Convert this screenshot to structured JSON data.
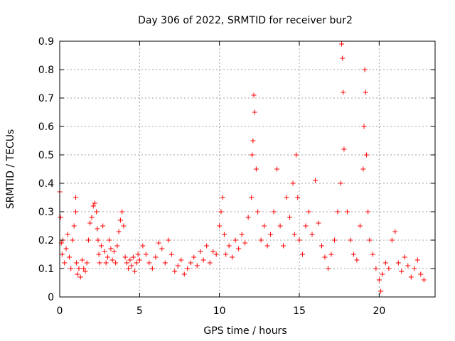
{
  "chart_data": {
    "type": "scatter",
    "title": "Day 306 of 2022, SRMTID for receiver bur2",
    "xlabel": "GPS time / hours",
    "ylabel": "SRMTID / TECUs",
    "xlim": [
      0,
      23.5
    ],
    "ylim": [
      0,
      0.9
    ],
    "x_ticks": [
      0,
      5,
      10,
      15,
      20
    ],
    "x_tick_labels": [
      "0",
      "5",
      "10",
      "15",
      "20"
    ],
    "y_ticks": [
      0,
      0.1,
      0.2,
      0.3,
      0.4,
      0.5,
      0.6,
      0.7,
      0.8,
      0.9
    ],
    "y_tick_labels": [
      "0",
      "0.1",
      "0.2",
      "0.3",
      "0.4",
      "0.5",
      "0.6",
      "0.7",
      "0.8",
      "0.9"
    ],
    "grid": true,
    "legend": "none",
    "marker": "plus",
    "series_color": "#ff0000",
    "series": [
      {
        "name": "SRMTID",
        "x": [
          0.0,
          0.05,
          0.1,
          0.15,
          0.2,
          0.3,
          0.4,
          0.5,
          0.6,
          0.7,
          0.8,
          0.9,
          1.0,
          1.0,
          1.05,
          1.1,
          1.2,
          1.3,
          1.4,
          1.5,
          1.6,
          1.7,
          1.8,
          1.9,
          2.0,
          2.1,
          2.2,
          2.3,
          2.35,
          2.4,
          2.45,
          2.5,
          2.6,
          2.7,
          2.8,
          2.9,
          3.0,
          3.1,
          3.2,
          3.3,
          3.4,
          3.5,
          3.6,
          3.7,
          3.8,
          3.9,
          4.0,
          4.1,
          4.2,
          4.3,
          4.4,
          4.5,
          4.6,
          4.7,
          4.8,
          4.9,
          5.0,
          5.2,
          5.4,
          5.6,
          5.8,
          6.0,
          6.2,
          6.4,
          6.6,
          6.8,
          7.0,
          7.2,
          7.4,
          7.6,
          7.8,
          8.0,
          8.2,
          8.4,
          8.6,
          8.8,
          9.0,
          9.2,
          9.4,
          9.6,
          9.8,
          10.0,
          10.1,
          10.2,
          10.3,
          10.4,
          10.6,
          10.8,
          11.0,
          11.2,
          11.4,
          11.6,
          11.8,
          12.0,
          12.05,
          12.1,
          12.15,
          12.2,
          12.3,
          12.4,
          12.6,
          12.8,
          13.0,
          13.2,
          13.4,
          13.6,
          13.8,
          14.0,
          14.2,
          14.4,
          14.6,
          14.7,
          14.8,
          14.9,
          15.0,
          15.2,
          15.4,
          15.6,
          15.8,
          16.0,
          16.2,
          16.4,
          16.6,
          16.8,
          17.0,
          17.2,
          17.4,
          17.6,
          17.65,
          17.7,
          17.75,
          17.8,
          18.0,
          18.2,
          18.4,
          18.6,
          18.8,
          19.0,
          19.05,
          19.1,
          19.15,
          19.2,
          19.3,
          19.4,
          19.6,
          19.8,
          20.0,
          20.1,
          20.2,
          20.4,
          20.6,
          20.8,
          21.0,
          21.2,
          21.4,
          21.6,
          21.8,
          22.0,
          22.2,
          22.4,
          22.6,
          22.8
        ],
        "y": [
          0.37,
          0.28,
          0.19,
          0.15,
          0.2,
          0.12,
          0.17,
          0.22,
          0.14,
          0.1,
          0.2,
          0.25,
          0.35,
          0.3,
          0.12,
          0.08,
          0.1,
          0.07,
          0.13,
          0.1,
          0.09,
          0.12,
          0.2,
          0.26,
          0.28,
          0.32,
          0.33,
          0.3,
          0.24,
          0.2,
          0.15,
          0.12,
          0.18,
          0.25,
          0.16,
          0.12,
          0.14,
          0.2,
          0.17,
          0.13,
          0.16,
          0.12,
          0.18,
          0.23,
          0.27,
          0.3,
          0.25,
          0.14,
          0.12,
          0.1,
          0.13,
          0.11,
          0.14,
          0.09,
          0.12,
          0.15,
          0.13,
          0.18,
          0.15,
          0.12,
          0.1,
          0.14,
          0.19,
          0.17,
          0.12,
          0.2,
          0.15,
          0.09,
          0.11,
          0.13,
          0.08,
          0.1,
          0.12,
          0.14,
          0.11,
          0.16,
          0.13,
          0.18,
          0.12,
          0.16,
          0.15,
          0.25,
          0.3,
          0.35,
          0.22,
          0.15,
          0.18,
          0.14,
          0.2,
          0.17,
          0.22,
          0.19,
          0.28,
          0.35,
          0.5,
          0.55,
          0.71,
          0.65,
          0.45,
          0.3,
          0.2,
          0.25,
          0.18,
          0.22,
          0.3,
          0.45,
          0.25,
          0.18,
          0.35,
          0.28,
          0.4,
          0.22,
          0.5,
          0.35,
          0.2,
          0.15,
          0.25,
          0.3,
          0.22,
          0.41,
          0.26,
          0.18,
          0.14,
          0.1,
          0.15,
          0.2,
          0.3,
          0.4,
          0.89,
          0.84,
          0.72,
          0.52,
          0.3,
          0.2,
          0.15,
          0.13,
          0.25,
          0.45,
          0.6,
          0.8,
          0.72,
          0.5,
          0.3,
          0.2,
          0.15,
          0.1,
          0.06,
          0.02,
          0.08,
          0.12,
          0.1,
          0.2,
          0.23,
          0.12,
          0.09,
          0.14,
          0.11,
          0.07,
          0.1,
          0.13,
          0.08,
          0.06
        ],
        "description_density": "dense cluster of plus markers, baseline ~0.05-0.35 TECU"
      }
    ]
  }
}
